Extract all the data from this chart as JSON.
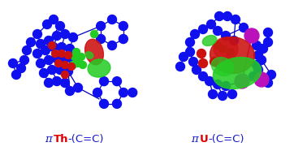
{
  "label_left_pi": "π",
  "label_left_Th": "Th",
  "label_left_rest": "-(C=C)",
  "label_right_pi": "π",
  "label_right_U": "U",
  "label_right_rest": "-(C=C)",
  "pi_color": "#1a1acc",
  "Th_color": "#dd0000",
  "U_color": "#dd0000",
  "rest_color": "#1a1acc",
  "bg_color": "#ffffff",
  "font_size": 9.5,
  "fig_width": 3.78,
  "fig_height": 1.86,
  "dpi": 100,
  "blue": "#1010ee",
  "dark_blue": "#0000bb",
  "green": "#22cc22",
  "dark_green": "#119911",
  "red": "#cc1111",
  "purple": "#bb11bb",
  "orange_red": "#dd3300"
}
